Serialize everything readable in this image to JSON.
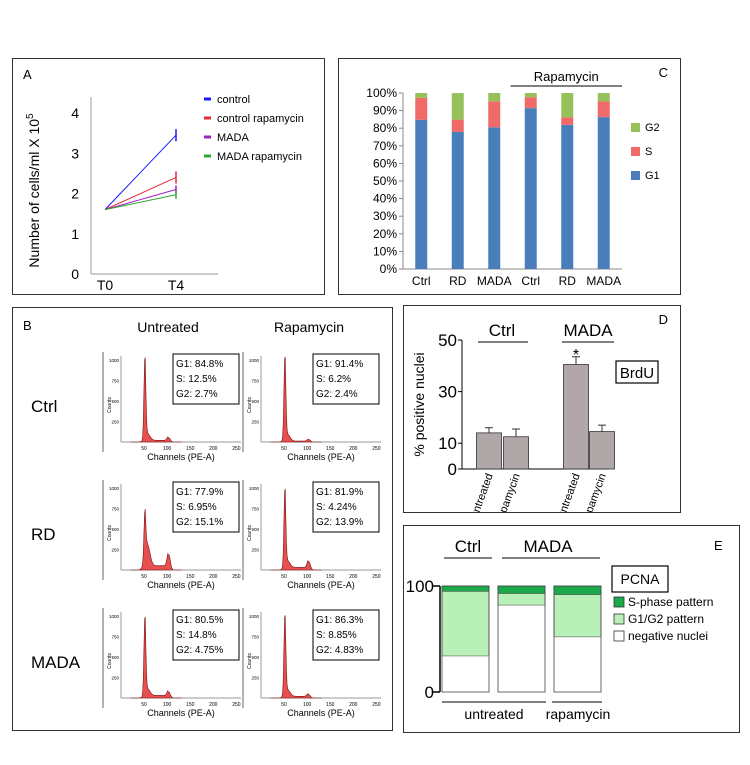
{
  "panel_labels": {
    "a": "A",
    "b": "B",
    "c": "C",
    "d": "D",
    "e": "E"
  },
  "colors": {
    "control": "#1a1aff",
    "control_rapamycin": "#e8283c",
    "mada": "#a020c0",
    "mada_rapamycin": "#30a830",
    "g1": "#4a7ebb",
    "s": "#f06a6a",
    "g2": "#96c05a",
    "bar_d": "#b0a8a8",
    "histogram": "#e85050",
    "s_phase": "#1aaa4a",
    "g1g2": "#b8f0b8",
    "negative": "#ffffff"
  },
  "chart_data": [
    {
      "id": "A",
      "type": "line",
      "ylabel_main": "Number of cells/ml X 10",
      "ylabel_exp": "5",
      "x": [
        "T0",
        "T4"
      ],
      "yticks": [
        0,
        1,
        2,
        3,
        4
      ],
      "ylim": [
        0,
        4.4
      ],
      "series": [
        {
          "name": "control",
          "color": "#1a1aff",
          "values": [
            1.6,
            3.45
          ],
          "err": [
            0,
            0.15
          ]
        },
        {
          "name": "control rapamycin",
          "color": "#e8283c",
          "values": [
            1.6,
            2.4
          ],
          "err": [
            0,
            0.15
          ]
        },
        {
          "name": "MADA",
          "color": "#a020c0",
          "values": [
            1.6,
            2.1
          ],
          "err": [
            0,
            0.1
          ]
        },
        {
          "name": "MADA rapamycin",
          "color": "#30a830",
          "values": [
            1.6,
            1.97
          ],
          "err": [
            0,
            0.1
          ]
        }
      ]
    },
    {
      "id": "C",
      "type": "bar",
      "stacked": true,
      "categories": [
        "Ctrl",
        "RD",
        "MADA",
        "Ctrl",
        "RD",
        "MADA"
      ],
      "group_label": "Rapamycin",
      "yticks": [
        "0%",
        "10%",
        "20%",
        "30%",
        "40%",
        "50%",
        "60%",
        "70%",
        "80%",
        "90%",
        "100%"
      ],
      "ylim": [
        0,
        100
      ],
      "series": [
        {
          "name": "G1",
          "color": "#4a7ebb",
          "values": [
            84.8,
            77.9,
            80.5,
            91.4,
            81.9,
            86.3
          ]
        },
        {
          "name": "S",
          "color": "#f06a6a",
          "values": [
            12.5,
            6.95,
            14.8,
            6.2,
            4.24,
            8.85
          ]
        },
        {
          "name": "G2",
          "color": "#96c05a",
          "values": [
            2.7,
            15.1,
            4.75,
            2.4,
            13.9,
            4.83
          ]
        }
      ],
      "legend_order": [
        "G2",
        "S",
        "G1"
      ]
    },
    {
      "id": "D",
      "type": "bar",
      "ylabel": "% positive nuclei",
      "group_labels": [
        "Ctrl",
        "MADA"
      ],
      "categories": [
        "untreated",
        "rapamycin",
        "untreated",
        "rapamycin"
      ],
      "values": [
        14,
        12.5,
        40.5,
        14.5
      ],
      "errors": [
        2,
        3,
        3,
        2.5
      ],
      "yticks": [
        0,
        10,
        30,
        50
      ],
      "ylim": [
        0,
        50
      ],
      "significance": "*",
      "annotation": "BrdU"
    },
    {
      "id": "E",
      "type": "bar",
      "stacked": true,
      "title": "PCNA",
      "group_labels": [
        "Ctrl",
        "MADA"
      ],
      "bottom_labels": [
        "untreated",
        "rapamycin"
      ],
      "yticks": [
        0,
        100
      ],
      "ylim": [
        0,
        100
      ],
      "series": [
        {
          "name": "negative nuclei",
          "color": "#ffffff",
          "values": [
            34,
            82,
            52
          ]
        },
        {
          "name": "G1/G2 pattern",
          "color": "#b8f0b8",
          "values": [
            61,
            11,
            40
          ]
        },
        {
          "name": "S-phase pattern",
          "color": "#1aaa4a",
          "values": [
            5,
            7,
            8
          ]
        }
      ],
      "legend_order": [
        "S-phase pattern",
        "G1/G2 pattern",
        "negative nuclei"
      ]
    }
  ],
  "panel_b": {
    "col_headers": [
      "Untreated",
      "Rapamycin"
    ],
    "row_labels": [
      "Ctrl",
      "RD",
      "MADA"
    ],
    "axis_xlabel": "Channels (PE-A)",
    "axis_ylabel": "Counts",
    "xticks": [
      "50",
      "100",
      "150",
      "200",
      "250"
    ],
    "yticks": [
      "250",
      "500",
      "750",
      "1000"
    ],
    "histograms": [
      {
        "stats": [
          "G1: 84.8%",
          "S:   12.5%",
          "G2:  2.7%"
        ],
        "g1_height": 0.97,
        "g2_height": 0.05,
        "s_level": 0.02
      },
      {
        "stats": [
          "G1: 91.4%",
          "S:    6.2%",
          "G2:  2.4%"
        ],
        "g1_height": 0.98,
        "g2_height": 0.03,
        "s_level": 0.01
      },
      {
        "stats": [
          "G1: 77.9%",
          "S:   6.95%",
          "G2: 15.1%"
        ],
        "g1_height": 0.55,
        "g2_height": 0.18,
        "s_level": 0.05
      },
      {
        "stats": [
          "G1: 81.9%",
          "S:   4.24%",
          "G2: 13.9%"
        ],
        "g1_height": 0.93,
        "g2_height": 0.1,
        "s_level": 0.03
      },
      {
        "stats": [
          "G1: 80.5%",
          "S:   14.8%",
          "G2: 4.75%"
        ],
        "g1_height": 0.93,
        "g2_height": 0.07,
        "s_level": 0.03
      },
      {
        "stats": [
          "G1: 86.3%",
          "S:   8.85%",
          "G2: 4.83%"
        ],
        "g1_height": 0.95,
        "g2_height": 0.04,
        "s_level": 0.02
      }
    ]
  }
}
